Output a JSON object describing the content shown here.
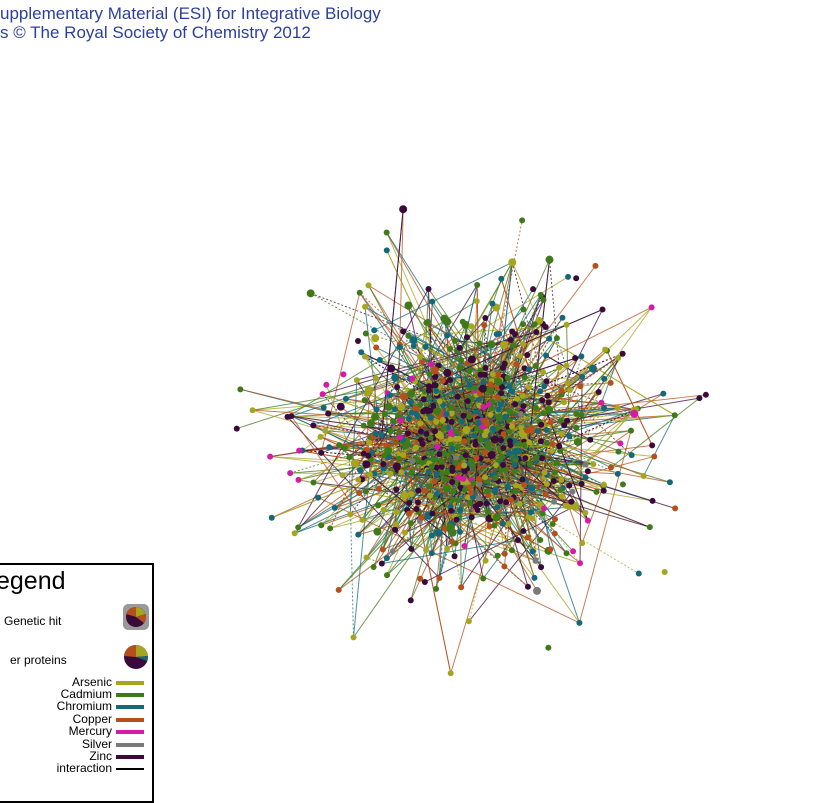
{
  "header": {
    "line1": "upplementary Material (ESI) for Integrative Biology",
    "line2": "s © The Royal Society of Chemistry 2012"
  },
  "legend": {
    "title": "egend",
    "nodes": [
      {
        "label": "Genetic hit",
        "icon": "genetic-hit-pie-icon"
      },
      {
        "label": "er proteins",
        "icon": "other-protein-pie-icon"
      }
    ],
    "edges": [
      {
        "label": "Arsenic",
        "color": "#a5a520"
      },
      {
        "label": "Cadmium",
        "color": "#3f7a1a"
      },
      {
        "label": "Chromium",
        "color": "#15687a"
      },
      {
        "label": "Copper",
        "color": "#b5501a"
      },
      {
        "label": "Mercury",
        "color": "#d61aa8"
      },
      {
        "label": "Silver",
        "color": "#7a7a7a"
      },
      {
        "label": "Zinc",
        "color": "#3a0a3a"
      },
      {
        "label": "interaction",
        "color": "#000000"
      }
    ]
  },
  "colors": {
    "arsenic": "#a5a520",
    "cadmium": "#3f7a1a",
    "chromium": "#15687a",
    "copper": "#b5501a",
    "mercury": "#d61aa8",
    "silver": "#7a7a7a",
    "zinc": "#3a0a3a",
    "header_text": "#2b3f9b"
  }
}
